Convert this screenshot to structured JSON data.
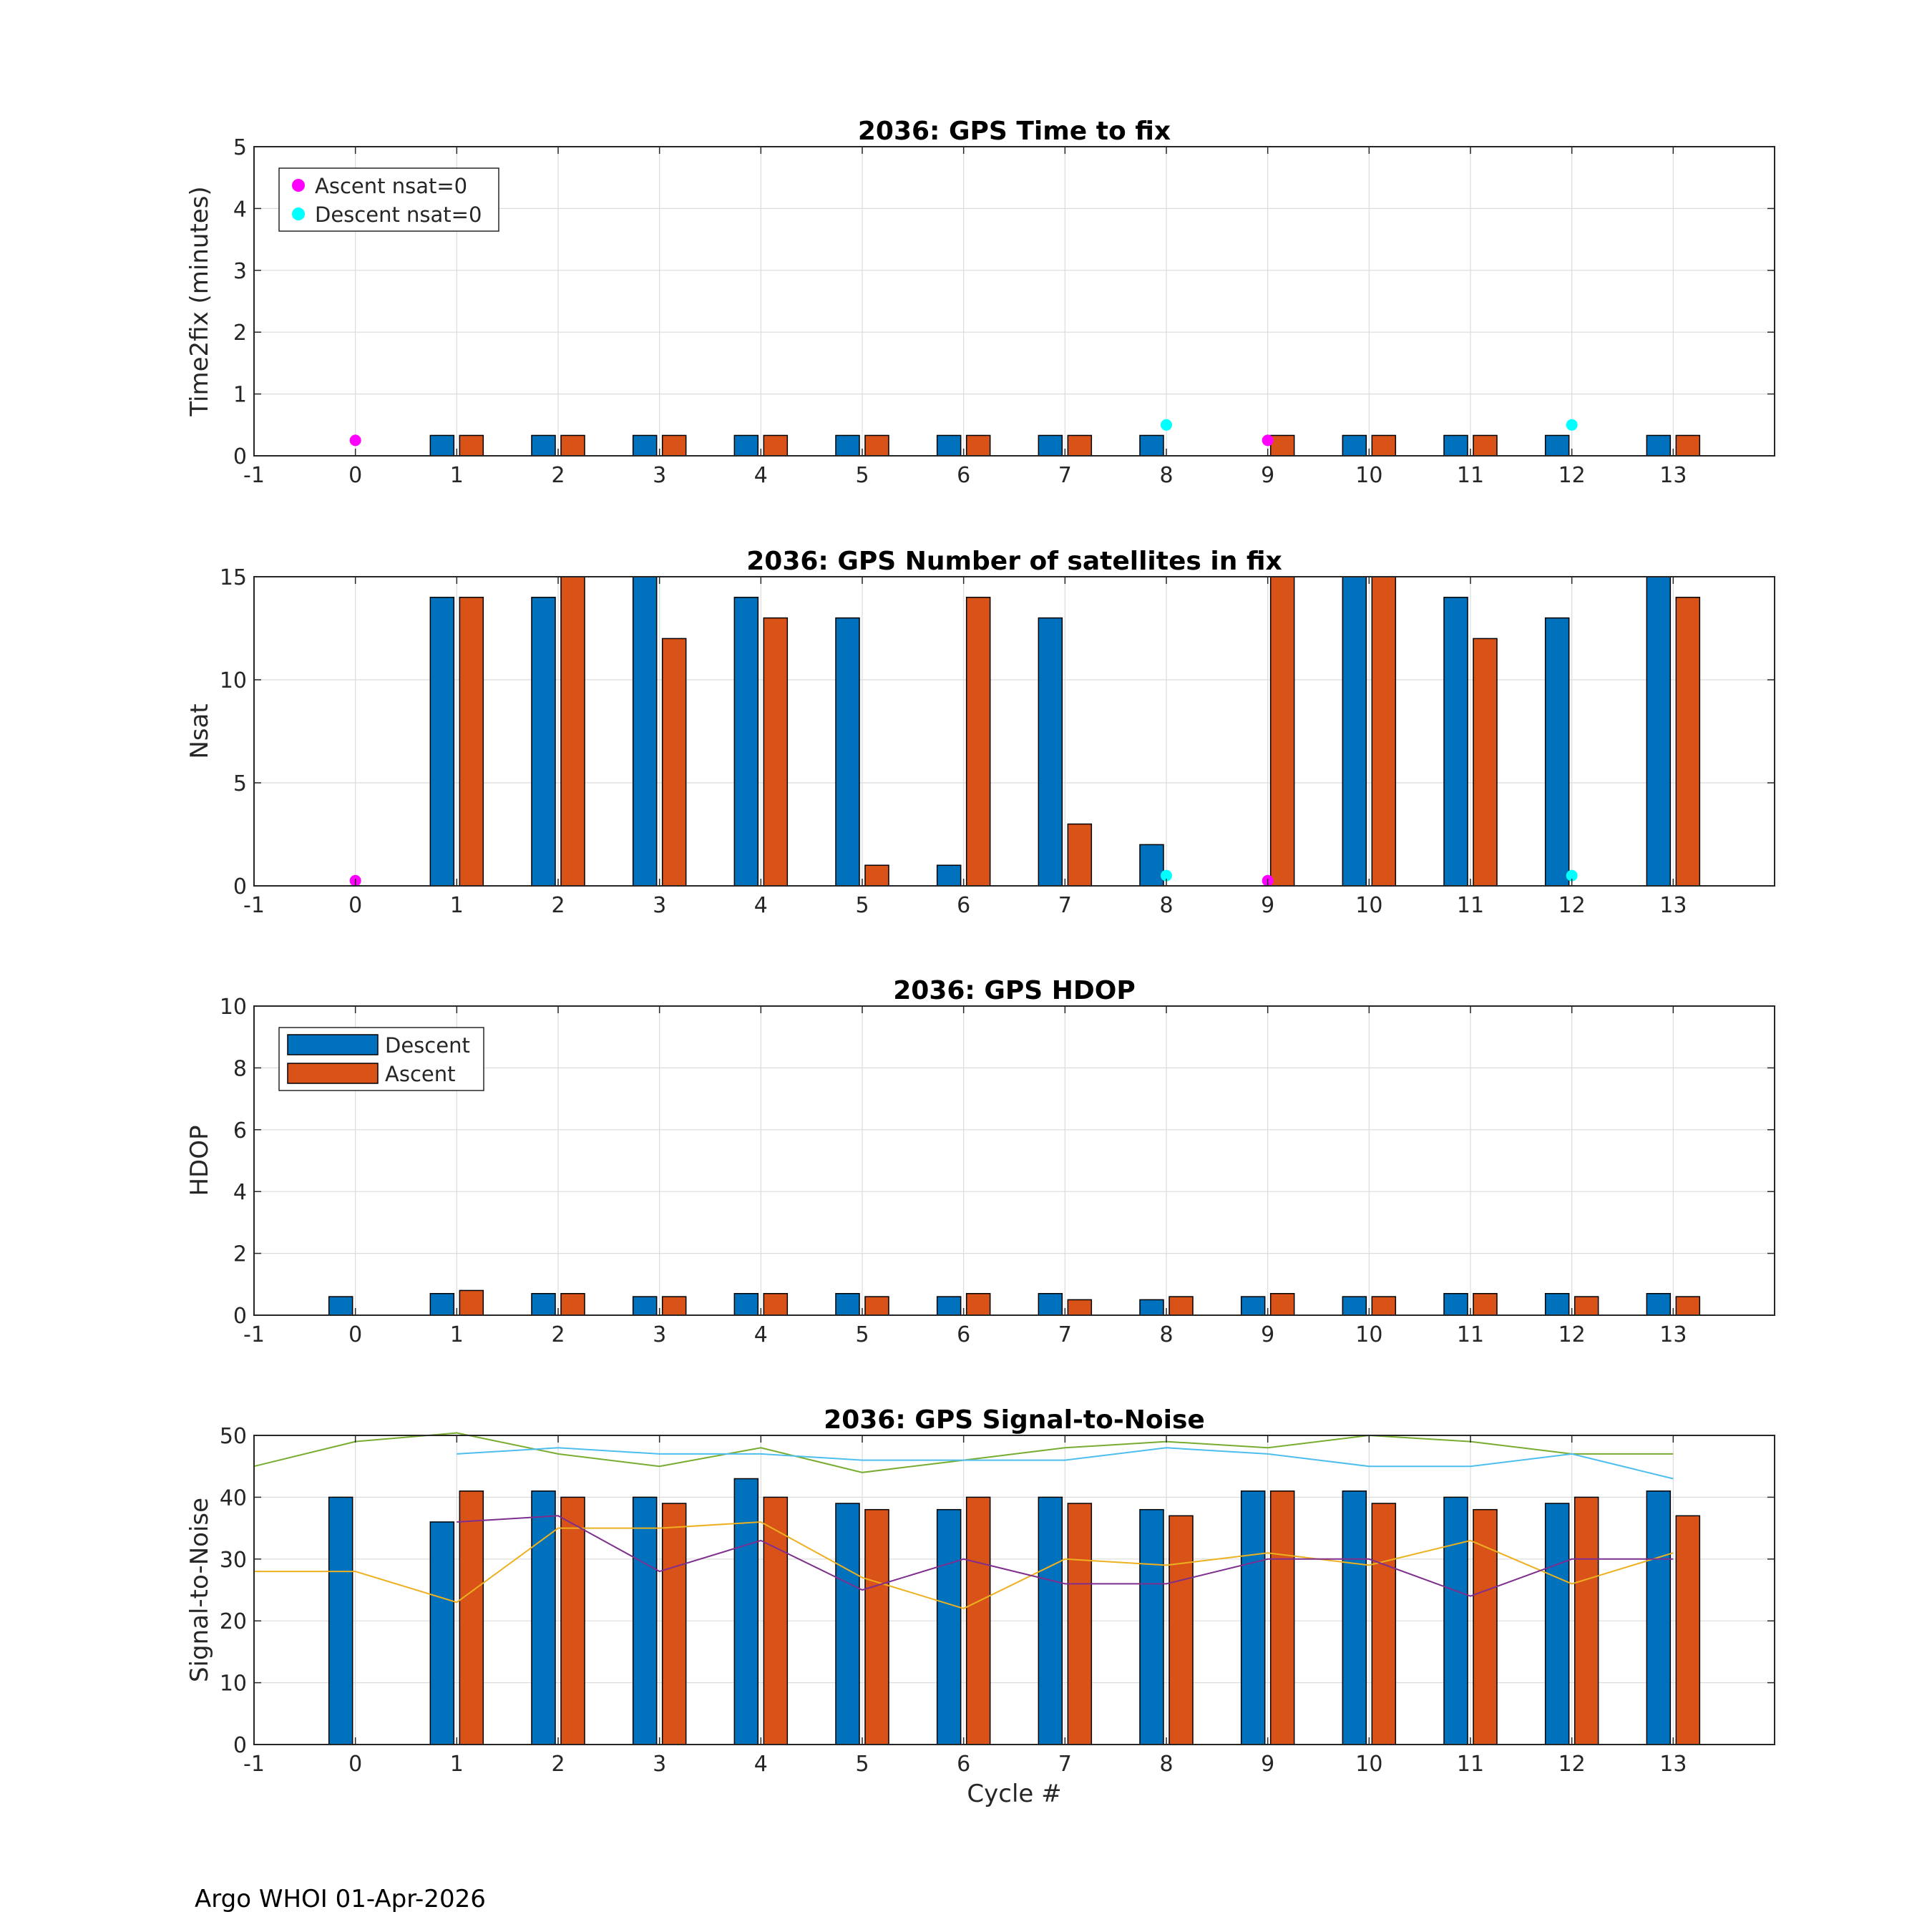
{
  "footer": "Argo WHOI 01-Apr-2026",
  "colors": {
    "descent": "#0072BD",
    "ascent": "#D95319",
    "ascent_nsat0": "#FF00FF",
    "descent_nsat0": "#00FFFF",
    "snr_line_green": "#77AC30",
    "snr_line_blue": "#4DBEEE",
    "snr_line_yellow": "#EDB120",
    "snr_line_purple": "#7E2F8E"
  },
  "chart_data": [
    {
      "id": "time2fix",
      "type": "bar",
      "title": "2036: GPS Time to fix",
      "xlabel": "",
      "ylabel": "Time2fix (minutes)",
      "xlim": [
        -1,
        14
      ],
      "ylim": [
        0,
        5
      ],
      "xticks": [
        -1,
        0,
        1,
        2,
        3,
        4,
        5,
        6,
        7,
        8,
        9,
        10,
        11,
        12,
        13
      ],
      "yticks": [
        0,
        1,
        2,
        3,
        4,
        5
      ],
      "grid": true,
      "categories": [
        0,
        1,
        2,
        3,
        4,
        5,
        6,
        7,
        8,
        9,
        10,
        11,
        12,
        13
      ],
      "series": [
        {
          "name": "Descent",
          "values": [
            null,
            0.33,
            0.33,
            0.33,
            0.33,
            0.33,
            0.33,
            0.33,
            0.33,
            null,
            0.33,
            0.33,
            0.33,
            0.33
          ]
        },
        {
          "name": "Ascent",
          "values": [
            null,
            0.33,
            0.33,
            0.33,
            0.33,
            0.33,
            0.33,
            0.33,
            null,
            0.33,
            0.33,
            0.33,
            null,
            0.33
          ]
        }
      ],
      "markers": [
        {
          "name": "Ascent nsat=0",
          "x": [
            0,
            9
          ],
          "y": [
            0.25,
            0.25
          ]
        },
        {
          "name": "Descent nsat=0",
          "x": [
            8,
            12
          ],
          "y": [
            0.5,
            0.5
          ]
        }
      ],
      "legend": {
        "position": "top-left",
        "entries": [
          "Ascent nsat=0",
          "Descent nsat=0"
        ]
      }
    },
    {
      "id": "nsat",
      "type": "bar",
      "title": "2036: GPS Number of satellites in fix",
      "xlabel": "",
      "ylabel": "Nsat",
      "xlim": [
        -1,
        14
      ],
      "ylim": [
        0,
        15
      ],
      "xticks": [
        -1,
        0,
        1,
        2,
        3,
        4,
        5,
        6,
        7,
        8,
        9,
        10,
        11,
        12,
        13
      ],
      "yticks": [
        0,
        5,
        10,
        15
      ],
      "grid": true,
      "categories": [
        0,
        1,
        2,
        3,
        4,
        5,
        6,
        7,
        8,
        9,
        10,
        11,
        12,
        13
      ],
      "series": [
        {
          "name": "Descent",
          "values": [
            null,
            14,
            14,
            15,
            14,
            13,
            1,
            13,
            2,
            null,
            15,
            14,
            13,
            15
          ]
        },
        {
          "name": "Ascent",
          "values": [
            null,
            14,
            15,
            12,
            13,
            1,
            14,
            3,
            null,
            15,
            15,
            12,
            null,
            14
          ]
        }
      ],
      "markers": [
        {
          "name": "Ascent nsat=0",
          "x": [
            0,
            9
          ],
          "y": [
            0.25,
            0.25
          ]
        },
        {
          "name": "Descent nsat=0",
          "x": [
            8,
            12
          ],
          "y": [
            0.5,
            0.5
          ]
        }
      ],
      "legend": null
    },
    {
      "id": "hdop",
      "type": "bar",
      "title": "2036: GPS HDOP",
      "xlabel": "",
      "ylabel": "HDOP",
      "xlim": [
        -1,
        14
      ],
      "ylim": [
        0,
        10
      ],
      "xticks": [
        -1,
        0,
        1,
        2,
        3,
        4,
        5,
        6,
        7,
        8,
        9,
        10,
        11,
        12,
        13
      ],
      "yticks": [
        0,
        2,
        4,
        6,
        8,
        10
      ],
      "grid": true,
      "categories": [
        0,
        1,
        2,
        3,
        4,
        5,
        6,
        7,
        8,
        9,
        10,
        11,
        12,
        13
      ],
      "series": [
        {
          "name": "Descent",
          "values": [
            0.6,
            0.7,
            0.7,
            0.6,
            0.7,
            0.7,
            0.6,
            0.7,
            0.5,
            0.6,
            0.6,
            0.7,
            0.7,
            0.7
          ]
        },
        {
          "name": "Ascent",
          "values": [
            null,
            0.8,
            0.7,
            0.6,
            0.7,
            0.6,
            0.7,
            0.5,
            0.6,
            0.7,
            0.6,
            0.7,
            0.6,
            0.6
          ]
        }
      ],
      "markers": [],
      "legend": {
        "position": "top-left",
        "entries": [
          "Descent",
          "Ascent"
        ]
      }
    },
    {
      "id": "snr",
      "type": "bar",
      "title": "2036: GPS Signal-to-Noise",
      "xlabel": "Cycle #",
      "ylabel": "Signal-to-Noise",
      "xlim": [
        -1,
        14
      ],
      "ylim": [
        0,
        50
      ],
      "xticks": [
        -1,
        0,
        1,
        2,
        3,
        4,
        5,
        6,
        7,
        8,
        9,
        10,
        11,
        12,
        13
      ],
      "yticks": [
        0,
        10,
        20,
        30,
        40,
        50
      ],
      "grid": true,
      "categories": [
        0,
        1,
        2,
        3,
        4,
        5,
        6,
        7,
        8,
        9,
        10,
        11,
        12,
        13
      ],
      "series": [
        {
          "name": "Descent",
          "values": [
            40,
            36,
            41,
            40,
            43,
            39,
            38,
            40,
            38,
            41,
            41,
            40,
            39,
            41
          ]
        },
        {
          "name": "Ascent",
          "values": [
            null,
            41,
            40,
            39,
            40,
            38,
            40,
            39,
            37,
            41,
            39,
            38,
            40,
            37
          ]
        }
      ],
      "lines": [
        {
          "name": "green",
          "x": [
            -1,
            0,
            1,
            2,
            3,
            4,
            5,
            6,
            7,
            8,
            9,
            10,
            11,
            12,
            13
          ],
          "y": [
            45,
            49,
            51,
            47,
            45,
            48,
            44,
            46,
            48,
            49,
            48,
            50,
            49,
            47,
            47
          ]
        },
        {
          "name": "blue",
          "x": [
            1,
            2,
            3,
            4,
            5,
            6,
            7,
            8,
            9,
            10,
            11,
            12,
            13
          ],
          "y": [
            47,
            48,
            47,
            47,
            46,
            46,
            46,
            48,
            47,
            45,
            45,
            47,
            43
          ]
        },
        {
          "name": "yellow",
          "x": [
            -1,
            0,
            1,
            2,
            3,
            4,
            5,
            6,
            7,
            8,
            9,
            10,
            11,
            12,
            13
          ],
          "y": [
            28,
            28,
            23,
            35,
            35,
            36,
            27,
            22,
            30,
            29,
            31,
            29,
            33,
            26,
            31
          ]
        },
        {
          "name": "purple",
          "x": [
            1,
            2,
            3,
            4,
            5,
            6,
            7,
            8,
            9,
            10,
            11,
            12,
            13
          ],
          "y": [
            36,
            37,
            28,
            33,
            25,
            30,
            26,
            26,
            30,
            30,
            24,
            30,
            30
          ]
        }
      ],
      "markers": [],
      "legend": null
    }
  ]
}
